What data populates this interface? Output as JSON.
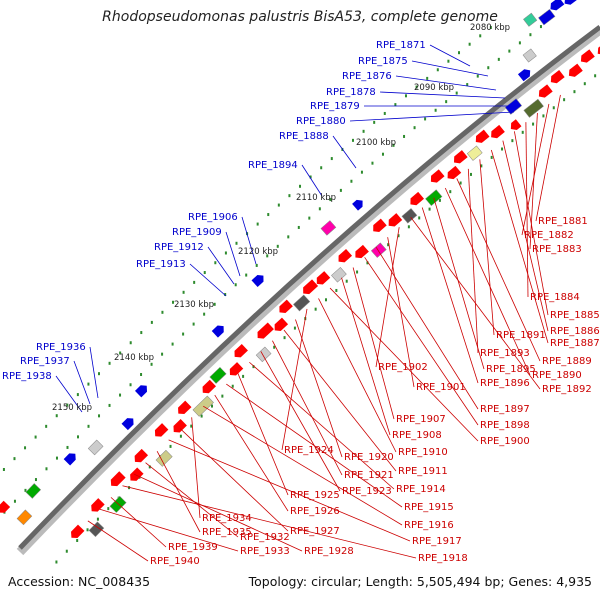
{
  "title": "Rhodopseudomonas palustris BisA53, complete genome",
  "footer": {
    "accession": "Accession: NC_008435",
    "topology": "Topology: circular; Length: 5,505,494 bp; Genes: 4,935"
  },
  "colors": {
    "backbone": "#666666",
    "backbone_shadow": "#bbbbbb",
    "tick_dot": "#2e8b2e",
    "label_top": "#0000cc",
    "label_bottom": "#cc0000",
    "scale_text": "#222222"
  },
  "scale_labels": [
    "2080 kbp",
    "2090 kbp",
    "2100 kbp",
    "2110 kbp",
    "2120 kbp",
    "2130 kbp",
    "2140 kbp",
    "2150 kbp"
  ],
  "top_labels": [
    "RPE_1871",
    "RPE_1875",
    "RPE_1876",
    "RPE_1878",
    "RPE_1879",
    "RPE_1880",
    "RPE_1888",
    "RPE_1894",
    "RPE_1906",
    "RPE_1909",
    "RPE_1912",
    "RPE_1913",
    "RPE_1936",
    "RPE_1937",
    "RPE_1938"
  ],
  "bottom_labels": [
    "RPE_1881",
    "RPE_1882",
    "RPE_1883",
    "RPE_1884",
    "RPE_1885",
    "RPE_1886",
    "RPE_1887",
    "RPE_1891",
    "RPE_1893",
    "RPE_1889",
    "RPE_1890",
    "RPE_1895",
    "RPE_1896",
    "RPE_1892",
    "RPE_1902",
    "RPE_1901",
    "RPE_1897",
    "RPE_1898",
    "RPE_1907",
    "RPE_1908",
    "RPE_1900",
    "RPE_1910",
    "RPE_1924",
    "RPE_1920",
    "RPE_1911",
    "RPE_1921",
    "RPE_1923",
    "RPE_1914",
    "RPE_1925",
    "RPE_1915",
    "RPE_1926",
    "RPE_1916",
    "RPE_1934",
    "RPE_1927",
    "RPE_1917",
    "RPE_1935",
    "RPE_1932",
    "RPE_1928",
    "RPE_1918",
    "RPE_1939",
    "RPE_1933",
    "RPE_1940"
  ]
}
